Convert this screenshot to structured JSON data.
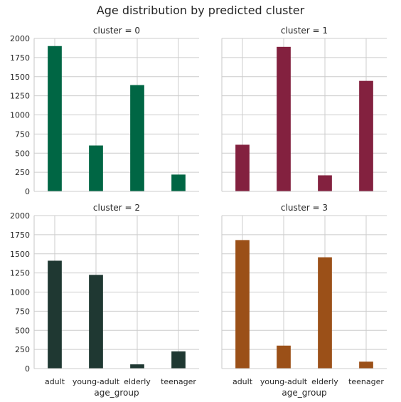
{
  "chart_data": {
    "type": "bar",
    "title": "Age distribution by predicted cluster",
    "xlabel": "age_group",
    "ylabel": "",
    "categories": [
      "adult",
      "young-adult",
      "elderly",
      "teenager"
    ],
    "ylim": [
      0,
      2000
    ],
    "yticks": [
      0,
      250,
      500,
      750,
      1000,
      1250,
      1500,
      1750,
      2000
    ],
    "grid": true,
    "panels": [
      {
        "title": "cluster = 0",
        "color": "#006644",
        "values": [
          1900,
          600,
          1390,
          220
        ]
      },
      {
        "title": "cluster = 1",
        "color": "#83213f",
        "values": [
          610,
          1890,
          210,
          1445
        ]
      },
      {
        "title": "cluster = 2",
        "color": "#1f3832",
        "values": [
          1410,
          1225,
          55,
          225
        ]
      },
      {
        "title": "cluster = 3",
        "color": "#9b5018",
        "values": [
          1680,
          300,
          1455,
          90
        ]
      }
    ]
  }
}
